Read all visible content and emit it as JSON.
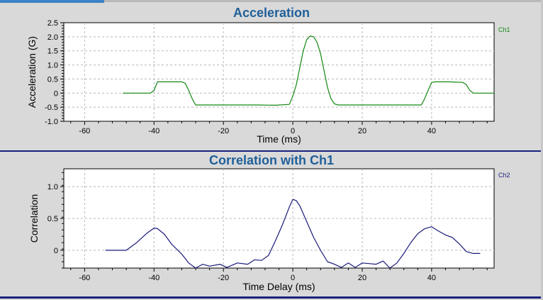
{
  "colors": {
    "ch1": "#118811",
    "ch2": "#1a1a7a",
    "title": "#1f5f99",
    "divider": "#1a237e"
  },
  "chart_data": [
    {
      "type": "line",
      "title": "Acceleration",
      "xlabel": "Time (ms)",
      "ylabel": "Acceleration (G)",
      "xlim": [
        -66,
        58
      ],
      "ylim": [
        -1.0,
        2.5
      ],
      "xticks": [
        -60,
        -40,
        -20,
        0,
        20,
        40
      ],
      "yticks": [
        -1.0,
        -0.5,
        0,
        0.5,
        1.0,
        1.5,
        2.0,
        2.5
      ],
      "ytick_labels": [
        "-1.0",
        "-0.5",
        "0",
        "0.5",
        "1.0",
        "1.5",
        "2.0",
        "2.5"
      ],
      "xgrid": [
        -60,
        -40,
        -20,
        0,
        20,
        40
      ],
      "ygrid": [
        -0.5,
        0,
        0.5,
        1.0,
        1.5,
        2.0
      ],
      "grid": true,
      "legend_position": "top-right",
      "series": [
        {
          "name": "Ch1",
          "color": "#118811",
          "x": [
            -49,
            -44,
            -41,
            -40,
            -39,
            -38,
            -32,
            -31,
            -30,
            -29,
            -28,
            -25,
            -10,
            -5,
            -1,
            0,
            1,
            2,
            3,
            4,
            5,
            6,
            7,
            8,
            9,
            10,
            11,
            12,
            13,
            15,
            30,
            37,
            38,
            39,
            40,
            41,
            45,
            49,
            50,
            51,
            52,
            55,
            58
          ],
          "y": [
            0,
            0,
            0,
            0.1,
            0.4,
            0.4,
            0.4,
            0.35,
            0.1,
            -0.2,
            -0.42,
            -0.42,
            -0.42,
            -0.43,
            -0.4,
            -0.1,
            0.3,
            0.9,
            1.5,
            1.9,
            2.03,
            2.0,
            1.8,
            1.4,
            0.8,
            0.2,
            -0.2,
            -0.38,
            -0.42,
            -0.42,
            -0.42,
            -0.42,
            -0.2,
            0.1,
            0.38,
            0.4,
            0.4,
            0.38,
            0.3,
            0.1,
            0,
            0,
            0
          ]
        }
      ]
    },
    {
      "type": "line",
      "title": "Correlation with Ch1",
      "xlabel": "Time Delay (ms)",
      "ylabel": "Correlation",
      "xlim": [
        -66,
        58
      ],
      "ylim": [
        -0.28,
        1.28
      ],
      "xticks": [
        -60,
        -40,
        -20,
        0,
        20,
        40
      ],
      "yticks": [
        0,
        0.5,
        1.0
      ],
      "ytick_labels": [
        "0",
        "0.5",
        "1.0"
      ],
      "xgrid": [
        -60,
        -40,
        -20,
        0,
        20,
        40
      ],
      "ygrid": [
        0,
        0.5,
        1.0
      ],
      "grid": true,
      "legend_position": "top-right",
      "series": [
        {
          "name": "Ch2",
          "color": "#1a1a7a",
          "x": [
            -54,
            -48,
            -45,
            -42,
            -40,
            -39,
            -37,
            -35,
            -32,
            -30,
            -28,
            -26,
            -24,
            -21,
            -19,
            -16,
            -13,
            -11,
            -9,
            -7,
            -5,
            -3,
            -1,
            0,
            1,
            2,
            4,
            6,
            8,
            10,
            12,
            14,
            16,
            18,
            20,
            22,
            24,
            26,
            28,
            30,
            32,
            34,
            36,
            38,
            40,
            42,
            44,
            46,
            48,
            50,
            52,
            54
          ],
          "y": [
            0,
            0,
            0.12,
            0.27,
            0.35,
            0.34,
            0.25,
            0.1,
            -0.06,
            -0.2,
            -0.28,
            -0.22,
            -0.25,
            -0.22,
            -0.27,
            -0.2,
            -0.22,
            -0.15,
            -0.16,
            -0.08,
            0.15,
            0.4,
            0.68,
            0.8,
            0.78,
            0.7,
            0.45,
            0.2,
            0,
            -0.18,
            -0.22,
            -0.27,
            -0.2,
            -0.27,
            -0.2,
            -0.21,
            -0.22,
            -0.17,
            -0.28,
            -0.2,
            -0.05,
            0.12,
            0.26,
            0.34,
            0.37,
            0.3,
            0.24,
            0.2,
            0.1,
            -0.02,
            -0.05,
            -0.05
          ]
        }
      ]
    }
  ]
}
